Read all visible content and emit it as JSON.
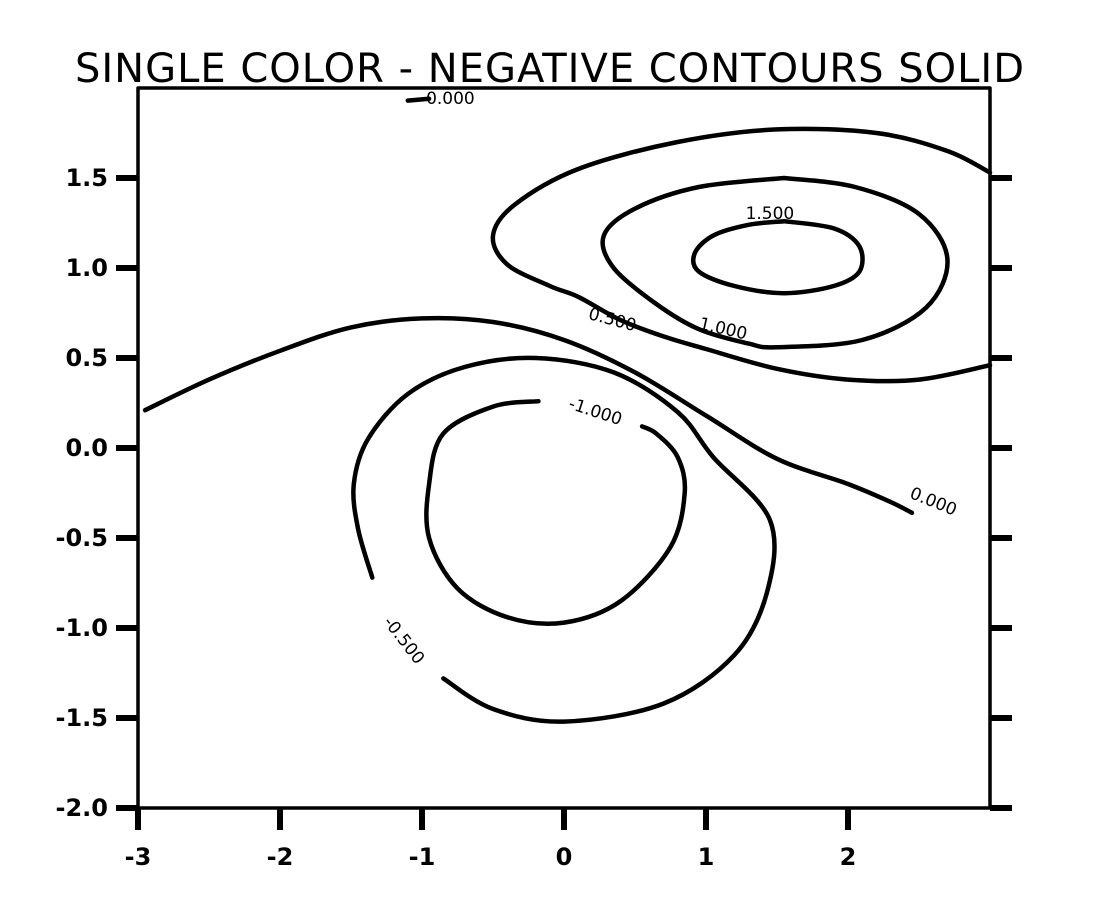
{
  "chart_data": {
    "type": "contour",
    "title": "SINGLE COLOR - NEGATIVE CONTOURS SOLID",
    "xlabel": "",
    "ylabel": "",
    "xlim": [
      -3,
      3
    ],
    "ylim": [
      -2,
      2
    ],
    "x_ticks": [
      -3,
      -2,
      -1,
      0,
      1,
      2
    ],
    "x_tick_labels": [
      "-3",
      "-2",
      "-1",
      "0",
      "1",
      "2"
    ],
    "y_ticks": [
      -2.0,
      -1.5,
      -1.0,
      -0.5,
      0.0,
      0.5,
      1.0,
      1.5
    ],
    "y_tick_labels": [
      "-2.0",
      "-1.5",
      "-1.0",
      "-0.5",
      "0.0",
      "0.5",
      "1.0",
      "1.5"
    ],
    "grid": false,
    "color": "#000000",
    "negative_linestyle": "solid",
    "levels": [
      {
        "value": 1.5,
        "label": "1.500",
        "label_position": [
          1.45,
          1.3
        ],
        "label_angle": 0,
        "points": [
          [
            1.55,
            1.26
          ],
          [
            1.9,
            1.22
          ],
          [
            2.08,
            1.12
          ],
          [
            2.08,
            0.98
          ],
          [
            1.9,
            0.9
          ],
          [
            1.55,
            0.86
          ],
          [
            1.2,
            0.9
          ],
          [
            0.95,
            0.98
          ],
          [
            0.92,
            1.08
          ],
          [
            1.05,
            1.18
          ],
          [
            1.3,
            1.24
          ],
          [
            1.55,
            1.26
          ]
        ]
      },
      {
        "value": 1.0,
        "label": "1.000",
        "label_position": [
          1.12,
          0.66
        ],
        "label_angle": 13,
        "points": [
          [
            1.55,
            1.5
          ],
          [
            2.05,
            1.45
          ],
          [
            2.5,
            1.3
          ],
          [
            2.7,
            1.05
          ],
          [
            2.55,
            0.78
          ],
          [
            2.1,
            0.6
          ],
          [
            1.5,
            0.56
          ],
          [
            1.3,
            0.58
          ],
          [
            0.95,
            0.66
          ],
          [
            0.65,
            0.8
          ],
          [
            0.35,
            1.0
          ],
          [
            0.28,
            1.18
          ],
          [
            0.5,
            1.33
          ],
          [
            0.95,
            1.45
          ],
          [
            1.55,
            1.5
          ]
        ]
      },
      {
        "value": 0.5,
        "label": "0.500",
        "label_position": [
          0.34,
          0.71
        ],
        "label_angle": 15,
        "points": [
          [
            3.0,
            1.53
          ],
          [
            2.7,
            1.65
          ],
          [
            2.2,
            1.75
          ],
          [
            1.5,
            1.77
          ],
          [
            0.8,
            1.7
          ],
          [
            0.1,
            1.55
          ],
          [
            -0.35,
            1.35
          ],
          [
            -0.5,
            1.18
          ],
          [
            -0.4,
            1.02
          ],
          [
            -0.1,
            0.9
          ],
          [
            0.1,
            0.84
          ],
          [
            0.4,
            0.71
          ],
          [
            0.7,
            0.62
          ],
          [
            1.0,
            0.55
          ],
          [
            1.5,
            0.44
          ],
          [
            2.0,
            0.38
          ],
          [
            2.5,
            0.38
          ],
          [
            3.0,
            0.46
          ]
        ]
      },
      {
        "value": 0.0,
        "label": "0.000",
        "label_position": [
          2.6,
          -0.3
        ],
        "label_angle": 22,
        "points": [
          [
            -2.95,
            0.21
          ],
          [
            -2.5,
            0.38
          ],
          [
            -2.0,
            0.54
          ],
          [
            -1.5,
            0.67
          ],
          [
            -1.0,
            0.72
          ],
          [
            -0.5,
            0.7
          ],
          [
            0.0,
            0.6
          ],
          [
            0.5,
            0.42
          ],
          [
            1.0,
            0.18
          ],
          [
            1.5,
            -0.06
          ],
          [
            2.0,
            -0.2
          ],
          [
            2.3,
            -0.3
          ],
          [
            2.45,
            -0.36
          ]
        ]
      },
      {
        "value": 0.0,
        "label": "0.000",
        "label_position": [
          -0.8,
          1.94
        ],
        "label_angle": 0,
        "points": [
          [
            -1.1,
            1.93
          ],
          [
            -0.95,
            1.94
          ]
        ]
      },
      {
        "value": -1.0,
        "label": "-1.000",
        "label_position": [
          0.22,
          0.2
        ],
        "label_angle": 18,
        "points": [
          [
            -0.18,
            0.26
          ],
          [
            -0.5,
            0.23
          ],
          [
            -0.85,
            0.08
          ],
          [
            -0.95,
            -0.2
          ],
          [
            -0.95,
            -0.5
          ],
          [
            -0.75,
            -0.78
          ],
          [
            -0.4,
            -0.94
          ],
          [
            0.0,
            -0.97
          ],
          [
            0.4,
            -0.85
          ],
          [
            0.75,
            -0.55
          ],
          [
            0.85,
            -0.25
          ],
          [
            0.8,
            -0.05
          ],
          [
            0.65,
            0.08
          ],
          [
            0.55,
            0.12
          ]
        ]
      },
      {
        "value": -0.5,
        "label": "-0.500",
        "label_position": [
          -1.13,
          -1.07
        ],
        "label_angle": 52,
        "points": [
          [
            -1.35,
            -0.72
          ],
          [
            -1.45,
            -0.45
          ],
          [
            -1.48,
            -0.2
          ],
          [
            -1.38,
            0.05
          ],
          [
            -1.1,
            0.3
          ],
          [
            -0.7,
            0.45
          ],
          [
            -0.2,
            0.5
          ],
          [
            0.35,
            0.42
          ],
          [
            0.8,
            0.2
          ],
          [
            1.05,
            -0.05
          ],
          [
            1.45,
            -0.4
          ],
          [
            1.43,
            -0.8
          ],
          [
            1.2,
            -1.15
          ],
          [
            0.7,
            -1.42
          ],
          [
            0.0,
            -1.52
          ],
          [
            -0.5,
            -1.45
          ],
          [
            -0.85,
            -1.28
          ]
        ]
      }
    ]
  }
}
